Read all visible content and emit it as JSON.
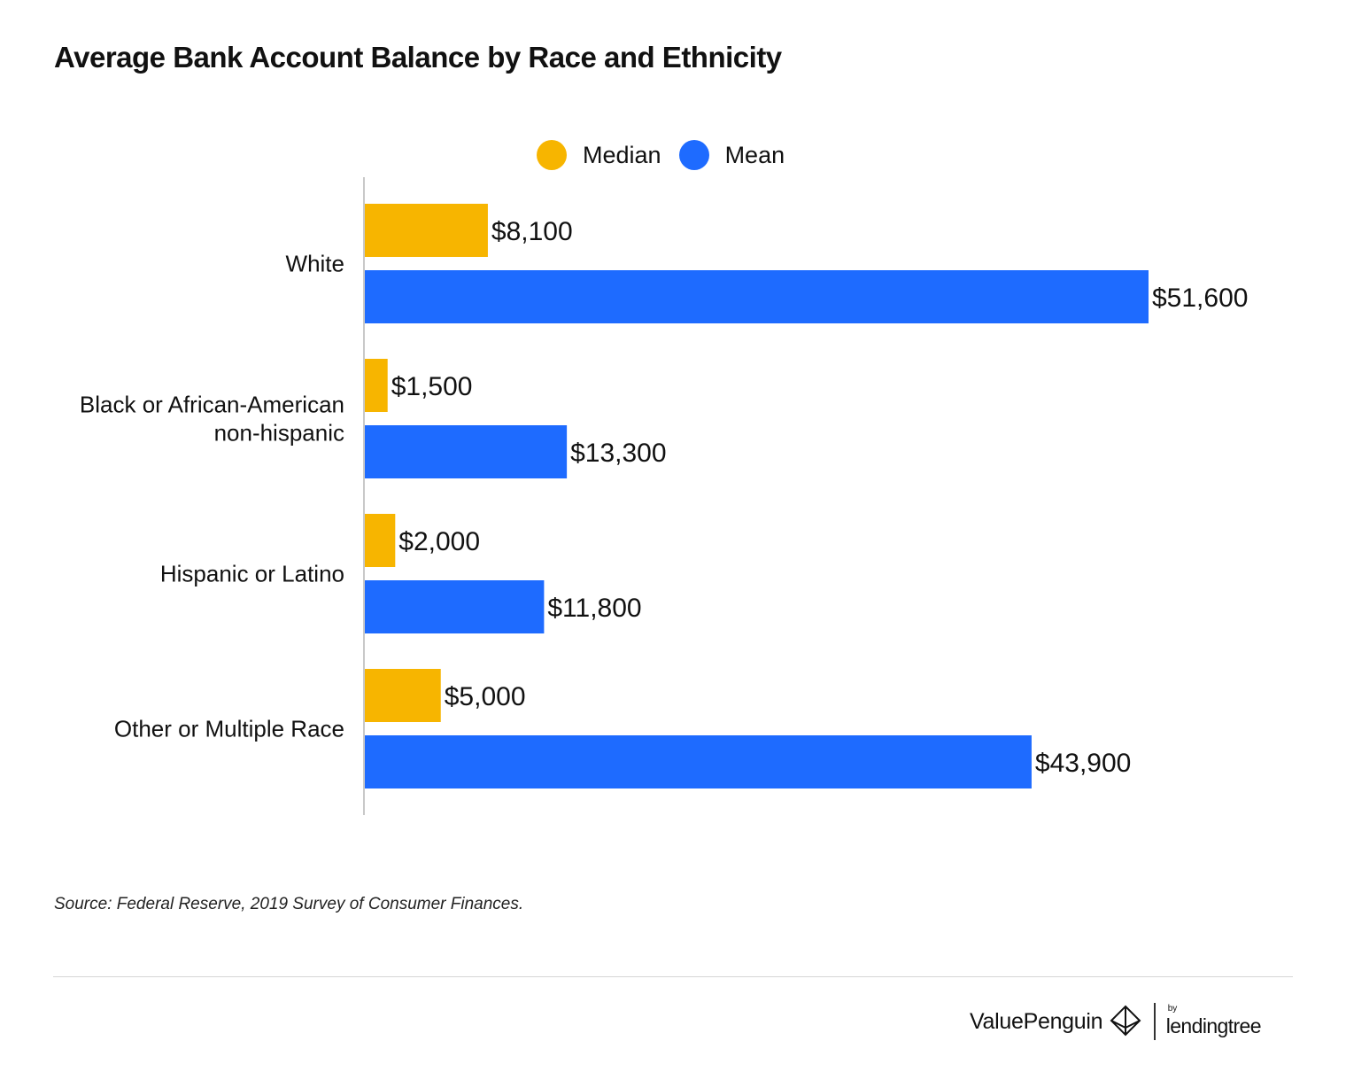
{
  "title": "Average Bank Account Balance by Race and Ethnicity",
  "legend": {
    "median_label": "Median",
    "mean_label": "Mean"
  },
  "colors": {
    "median": "#F7B500",
    "mean": "#1E6BFF",
    "axis": "#c8c8c8"
  },
  "chart_data": {
    "type": "bar",
    "orientation": "horizontal",
    "categories": [
      [
        "White"
      ],
      [
        "Black or African-American",
        "non-hispanic"
      ],
      [
        "Hispanic or Latino"
      ],
      [
        "Other or Multiple Race"
      ]
    ],
    "series": [
      {
        "name": "Median",
        "values": [
          8100,
          1500,
          2000,
          5000
        ],
        "labels": [
          "$8,100",
          "$1,500",
          "$2,000",
          "$5,000"
        ]
      },
      {
        "name": "Mean",
        "values": [
          51600,
          13300,
          11800,
          43900
        ],
        "labels": [
          "$51,600",
          "$13,300",
          "$11,800",
          "$43,900"
        ]
      }
    ],
    "xlim": [
      0,
      51600
    ],
    "grid": false,
    "legend_position": "top"
  },
  "source": "Source: Federal Reserve, 2019 Survey of Consumer Finances.",
  "footer": {
    "brand": "ValuePenguin",
    "by": "by",
    "partner": "lendingtree"
  }
}
